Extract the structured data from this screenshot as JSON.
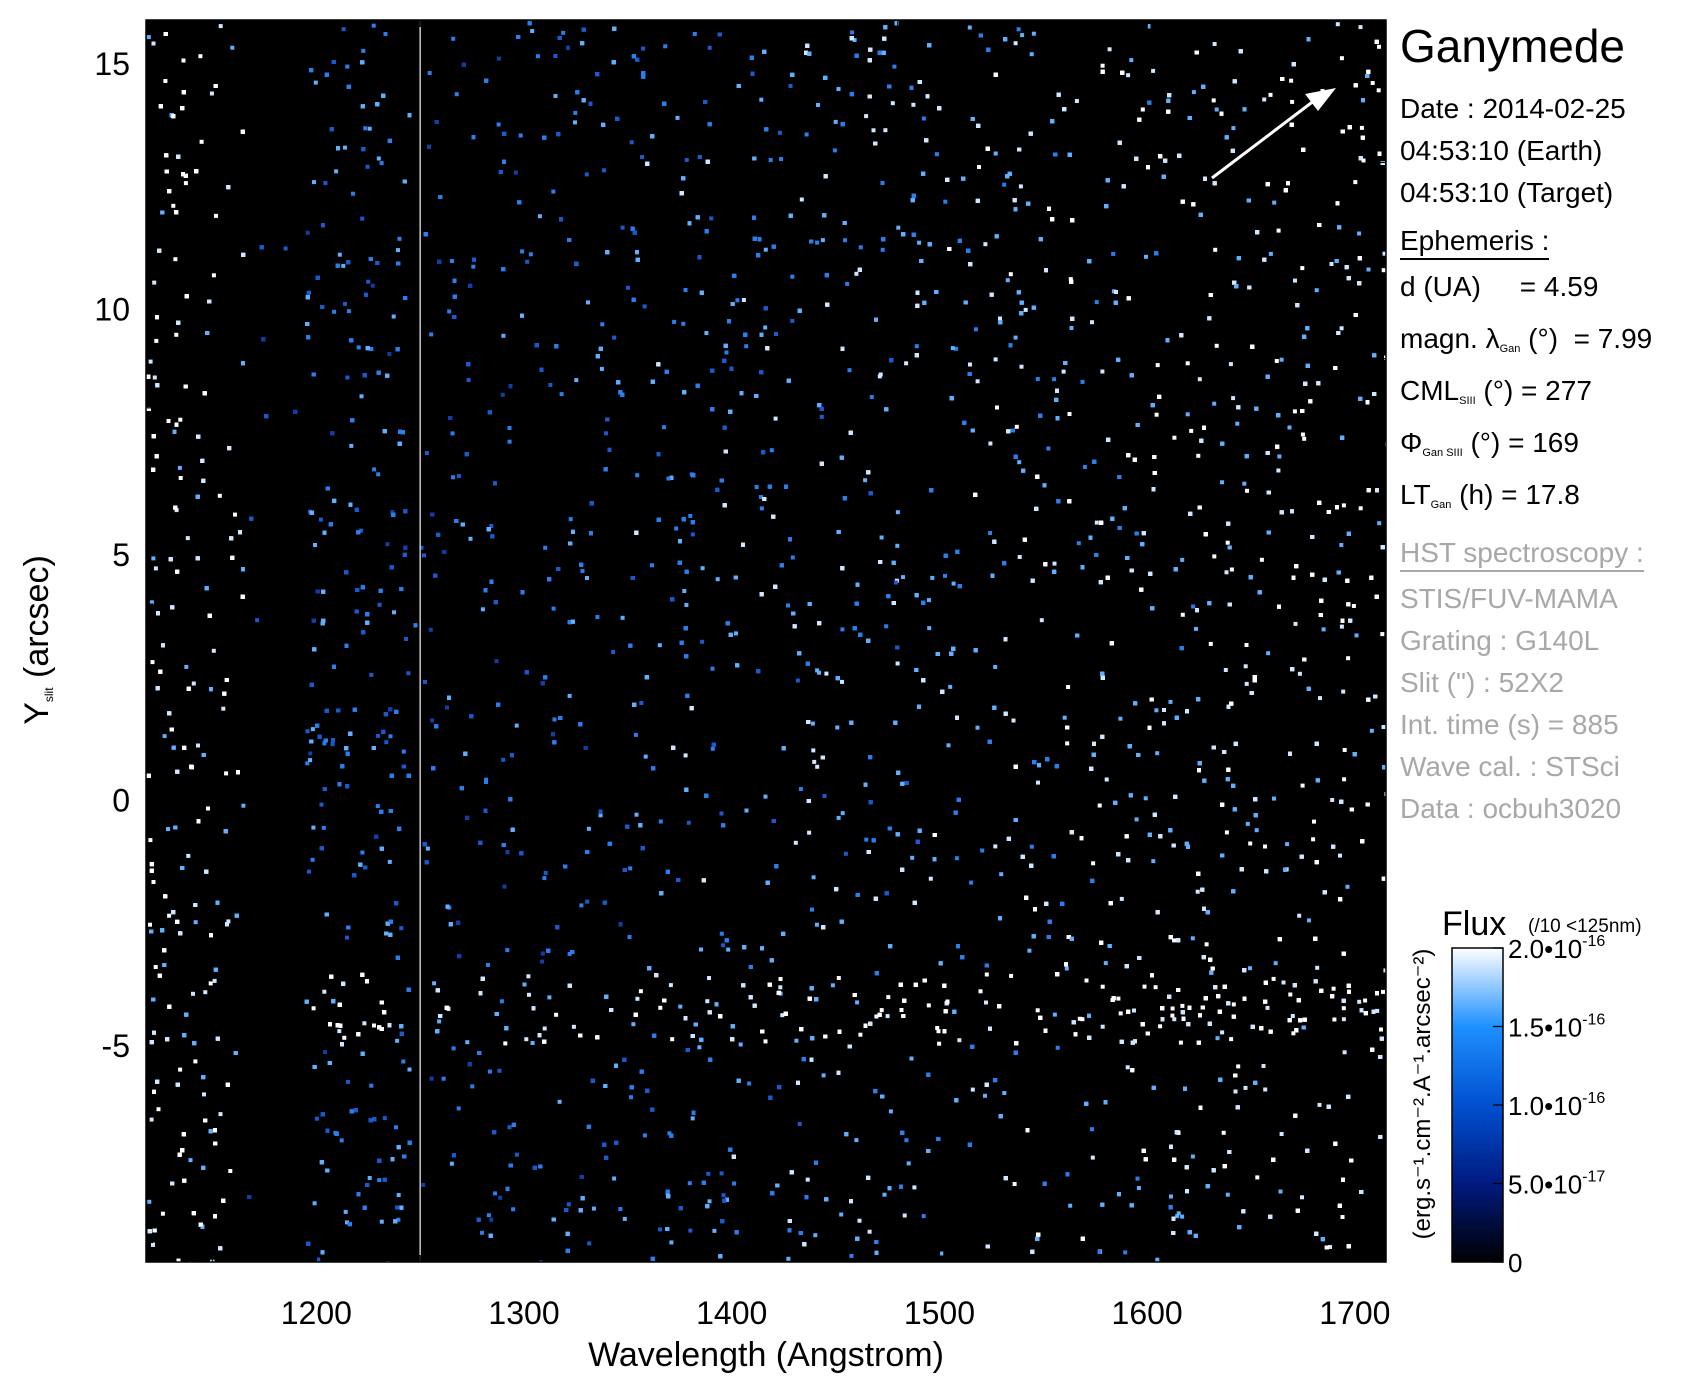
{
  "target": "Ganymede",
  "date_lines": [
    "Date : 2014-02-25",
    "04:53:10 (Earth)",
    "04:53:10 (Target)"
  ],
  "ephemeris": {
    "header": "Ephemeris :",
    "rows": [
      {
        "main": "d (UA)",
        "sub": "",
        "rest": "     = 4.59"
      },
      {
        "main": "magn. λ",
        "sub": "Gan",
        "rest": " (°)  = 7.99"
      },
      {
        "main": "CML",
        "sub": "SIII",
        "rest": " (°) = 277"
      },
      {
        "main": "Φ",
        "sub": "Gan SIII",
        "rest": " (°) = 169"
      },
      {
        "main": "LT",
        "sub": "Gan",
        "rest": " (h) = 17.8"
      }
    ]
  },
  "instrument": {
    "header": "HST spectroscopy :",
    "lines": [
      "STIS/FUV-MAMA",
      "Grating : G140L",
      "Slit (\") : 52X2",
      "Int. time (s) = 885",
      "Wave cal. : STSci",
      "Data : ocbuh3020"
    ]
  },
  "chart_data": {
    "type": "heatmap",
    "xlabel": "Wavelength (Angstrom)",
    "ylabel_main": "Y",
    "ylabel_sub": "slit",
    "ylabel_rest": " (arcsec)",
    "xlim": [
      1118,
      1715
    ],
    "ylim": [
      -9.4,
      15.9
    ],
    "x_ticks": [
      1200,
      1300,
      1400,
      1500,
      1600,
      1700
    ],
    "x_tick_labels": [
      "1200",
      "1300",
      "1400",
      "1500",
      "1600",
      "1700"
    ],
    "y_ticks": [
      -5,
      0,
      5,
      10,
      15
    ],
    "y_tick_labels": [
      "-5",
      "0",
      "5",
      "10",
      "15"
    ],
    "emission_band_y": -4.2,
    "lyman_alpha": {
      "x": 1216,
      "y": -4.2
    },
    "separator_x": 1250,
    "colorbar": {
      "title": "Flux",
      "title_note": "(/10 <125nm)",
      "unit_label": "(erg.s⁻¹.cm⁻².A⁻¹.arcsec⁻²)",
      "range": [
        0,
        2e-16
      ],
      "ticks": [
        {
          "value": 0,
          "label": "0",
          "exp": ""
        },
        {
          "value": 5e-17,
          "label": "5.0•10",
          "exp": "-17"
        },
        {
          "value": 1e-16,
          "label": "1.0•10",
          "exp": "-16"
        },
        {
          "value": 1.5e-16,
          "label": "1.5•10",
          "exp": "-16"
        },
        {
          "value": 2e-16,
          "label": "2.0•10",
          "exp": "-16"
        }
      ],
      "colors": [
        "#000000",
        "#001a80",
        "#0050d0",
        "#1e90ff",
        "#ffffff"
      ]
    }
  }
}
